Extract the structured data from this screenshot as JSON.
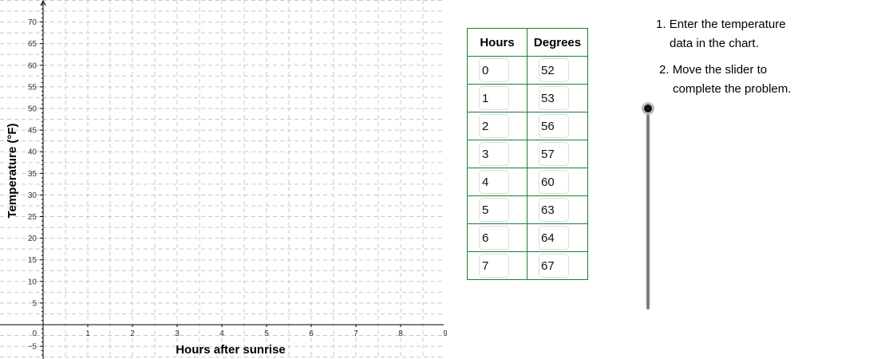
{
  "graph": {
    "y_axis_title": "Temperature (°F)",
    "x_axis_title": "Hours after sunrise",
    "x_ticks": [
      "1",
      "2",
      "3",
      "4",
      "5",
      "6",
      "7",
      "8",
      "9"
    ],
    "y_ticks": [
      "70",
      "65",
      "60",
      "55",
      "50",
      "45",
      "40",
      "35",
      "30",
      "25",
      "20",
      "15",
      "10",
      "5"
    ],
    "origin_label": "0",
    "neg_y_label": "−5"
  },
  "table": {
    "headers": [
      "Hours",
      "Degrees"
    ],
    "rows": [
      {
        "hours": "0",
        "degrees": "52"
      },
      {
        "hours": "1",
        "degrees": "53"
      },
      {
        "hours": "2",
        "degrees": "56"
      },
      {
        "hours": "3",
        "degrees": "57"
      },
      {
        "hours": "4",
        "degrees": "60"
      },
      {
        "hours": "5",
        "degrees": "63"
      },
      {
        "hours": "6",
        "degrees": "64"
      },
      {
        "hours": "7",
        "degrees": "67"
      }
    ]
  },
  "instructions": {
    "step1_num": "1.",
    "step1_line1": "Enter the temperature",
    "step1_line2": "data in the chart.",
    "step2_num": "2.",
    "step2_line1": "Move the slider to",
    "step2_line2": "complete the problem."
  },
  "slider": {
    "value": 0
  },
  "colors": {
    "table_border": "#1e7d2f",
    "grid": "#c8c8c8",
    "slider_track": "#7d7d7d"
  }
}
